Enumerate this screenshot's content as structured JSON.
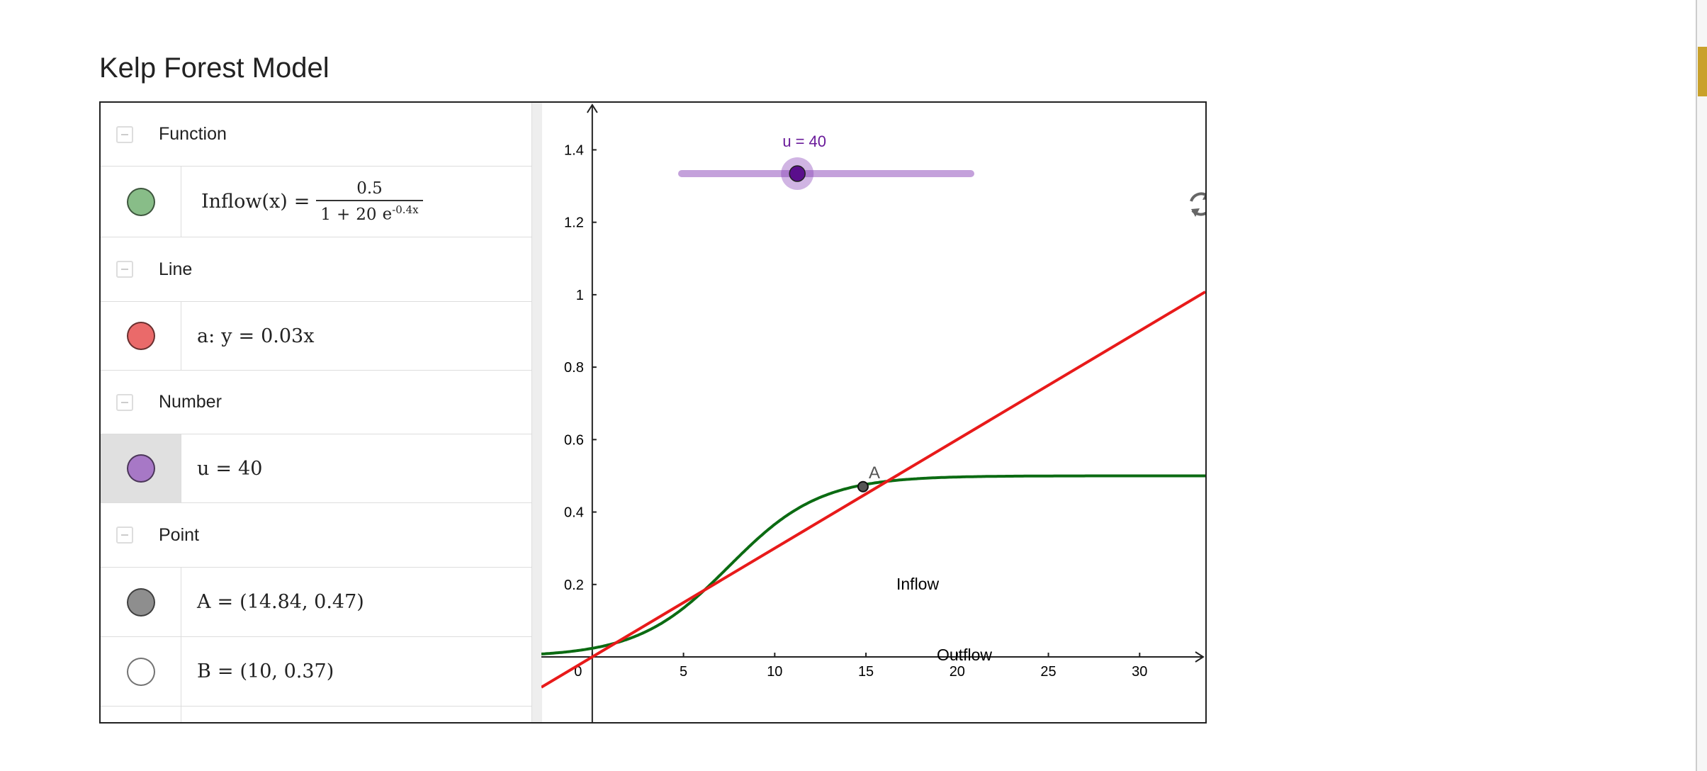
{
  "header": {
    "title": "Kelp Forest Model"
  },
  "algebra": {
    "function": {
      "heading": "Function",
      "color": "#4d9c4d",
      "name": "Inflow(x)",
      "equals": "=",
      "numerator": 0.5,
      "denominator_constant": 1,
      "plus": "+",
      "coefficient": 20,
      "base": "e",
      "exponent": -0.4,
      "variable": "x"
    },
    "line": {
      "heading": "Line",
      "color": "#e02020",
      "name": "a:",
      "lhs": "y",
      "equals": "=",
      "slope": 0.03,
      "variable": "x"
    },
    "number": {
      "heading": "Number",
      "color": "#8a44b8",
      "name": "u",
      "equals": "=",
      "value": 40
    },
    "points": {
      "heading": "Point",
      "items": [
        {
          "name": "A",
          "equals": "=",
          "x": 14.84,
          "y": 0.47,
          "color": "#555555"
        },
        {
          "name": "B",
          "equals": "=",
          "x": 10,
          "y": 0.37,
          "color": "#ffffff"
        }
      ]
    }
  },
  "graphics": {
    "xlim": [
      -2.79,
      33.6
    ],
    "ylim": [
      -0.18,
      1.53
    ],
    "xticks": [
      0,
      5,
      10,
      15,
      20,
      25,
      30
    ],
    "yticks": [
      0.2,
      0.4,
      0.6,
      0.8,
      1,
      1.2,
      1.4
    ],
    "slider_range": [
      0,
      100
    ],
    "labels": [
      "Inflow",
      "Outflow"
    ]
  }
}
